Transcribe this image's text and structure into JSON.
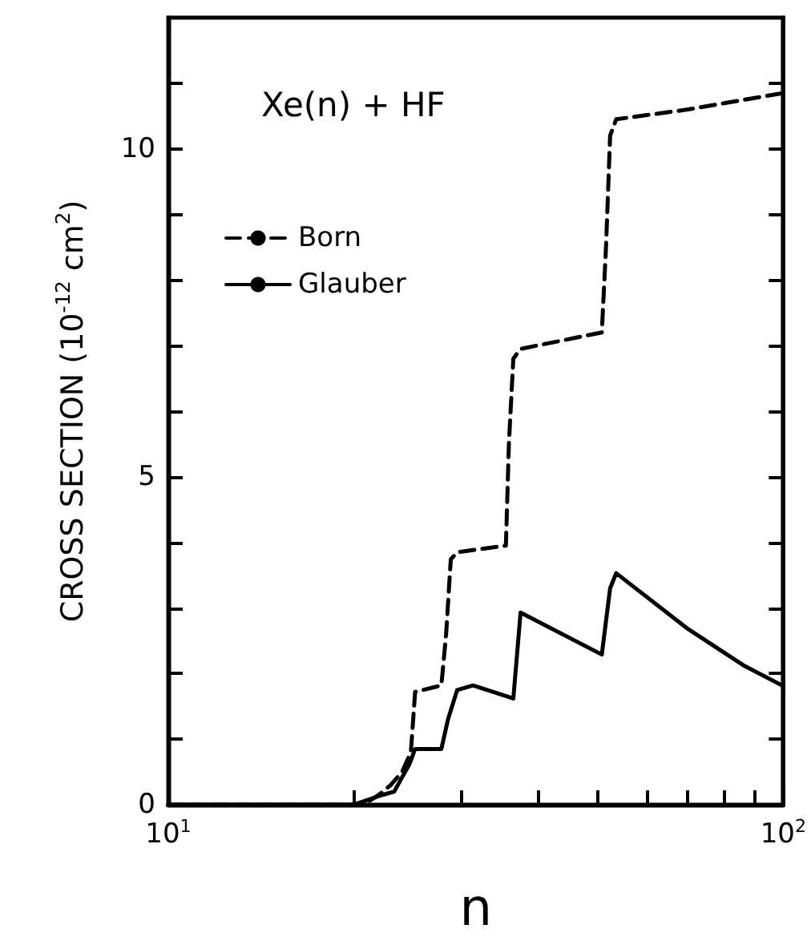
{
  "chart_data": {
    "type": "line",
    "annotations": [
      "Xe(n) + HF"
    ],
    "xlabel": "n",
    "ylabel": "CROSS SECTION (10$^{-12}$ cm$^{2}$)",
    "log": "x",
    "xlim": [
      10,
      100
    ],
    "xticks": [
      {
        "value": 10,
        "label": "10$^{1}$"
      },
      {
        "value": 20,
        "label": null
      },
      {
        "value": 30,
        "label": null
      },
      {
        "value": 40,
        "label": null
      },
      {
        "value": 50,
        "label": null
      },
      {
        "value": 60,
        "label": null
      },
      {
        "value": 70,
        "label": null
      },
      {
        "value": 80,
        "label": null
      },
      {
        "value": 90,
        "label": null
      },
      {
        "value": 100,
        "label": "10$^{2}$"
      }
    ],
    "ylim": [
      0,
      12
    ],
    "yticks": [
      0,
      {
        "value": 1,
        "label": null
      },
      {
        "value": 2,
        "label": null
      },
      {
        "value": 3,
        "label": null
      },
      {
        "value": 4,
        "label": null
      },
      5,
      {
        "value": 6,
        "label": null
      },
      {
        "value": 7,
        "label": null
      },
      {
        "value": 8,
        "label": null
      },
      {
        "value": 9,
        "label": null
      },
      10,
      {
        "value": 11,
        "label": null
      }
    ],
    "grid": false,
    "legend": "top left",
    "marker": "none",
    "series": [
      {
        "name": "Born",
        "color": "#000000",
        "line_style": "dashed",
        "x": [
          10,
          20,
          21,
          22,
          23,
          24,
          24.8,
          25.2,
          27.8,
          28.3,
          28.8,
          29.5,
          35.4,
          35.8,
          36.4,
          37.4,
          50.7,
          51.5,
          52.3,
          53.5,
          70,
          100
        ],
        "values": [
          0,
          0,
          0.03,
          0.15,
          0.3,
          0.5,
          0.8,
          1.72,
          1.82,
          2.6,
          3.74,
          3.85,
          3.95,
          5.5,
          6.8,
          6.95,
          7.2,
          8.5,
          10.2,
          10.45,
          10.6,
          10.85
        ]
      },
      {
        "name": "Glauber",
        "color": "#000000",
        "line_style": "solid",
        "x": [
          10,
          20,
          22.3,
          23.3,
          24.7,
          25.2,
          27.8,
          28.5,
          29.5,
          31.3,
          36.4,
          37.4,
          50.7,
          52.3,
          53.5,
          70,
          86,
          100
        ],
        "values": [
          0,
          0,
          0.15,
          0.2,
          0.63,
          0.85,
          0.85,
          1.3,
          1.75,
          1.82,
          1.62,
          2.93,
          2.29,
          3.3,
          3.53,
          2.68,
          2.13,
          1.81
        ]
      }
    ]
  }
}
